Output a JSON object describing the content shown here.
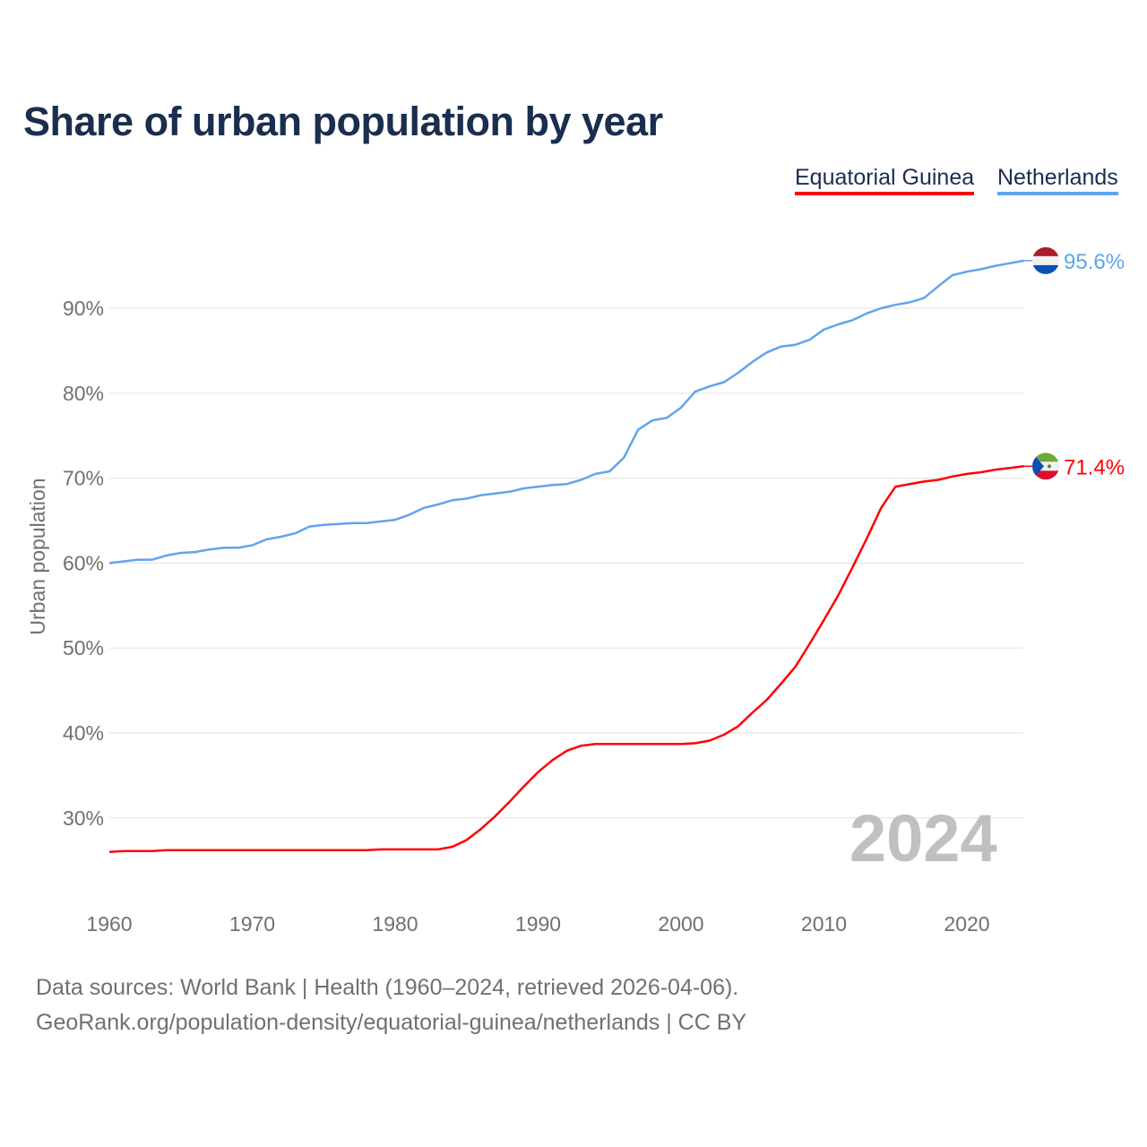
{
  "chart_data": {
    "type": "line",
    "title": "Share of urban population by year",
    "xlabel": "",
    "ylabel": "Urban population",
    "xlim": [
      1960,
      2024
    ],
    "ylim": [
      20,
      97
    ],
    "x_ticks": [
      1960,
      1970,
      1980,
      1990,
      2000,
      2010,
      2020
    ],
    "x_tick_labels": [
      "1960",
      "1970",
      "1980",
      "1990",
      "2000",
      "2010",
      "2020"
    ],
    "y_ticks": [
      30,
      40,
      50,
      60,
      70,
      80,
      90
    ],
    "y_tick_labels": [
      "30%",
      "40%",
      "50%",
      "60%",
      "70%",
      "80%",
      "90%"
    ],
    "grid": true,
    "legend_position": "top-right",
    "year_watermark": "2024",
    "x": [
      1960,
      1961,
      1962,
      1963,
      1964,
      1965,
      1966,
      1967,
      1968,
      1969,
      1970,
      1971,
      1972,
      1973,
      1974,
      1975,
      1976,
      1977,
      1978,
      1979,
      1980,
      1981,
      1982,
      1983,
      1984,
      1985,
      1986,
      1987,
      1988,
      1989,
      1990,
      1991,
      1992,
      1993,
      1994,
      1995,
      1996,
      1997,
      1998,
      1999,
      2000,
      2001,
      2002,
      2003,
      2004,
      2005,
      2006,
      2007,
      2008,
      2009,
      2010,
      2011,
      2012,
      2013,
      2014,
      2015,
      2016,
      2017,
      2018,
      2019,
      2020,
      2021,
      2022,
      2023,
      2024
    ],
    "series": [
      {
        "name": "Equatorial Guinea",
        "color": "#ff0000",
        "end_label": "71.4%",
        "flag": "equatorial-guinea-flag",
        "values": [
          26.0,
          26.1,
          26.1,
          26.1,
          26.2,
          26.2,
          26.2,
          26.2,
          26.2,
          26.2,
          26.2,
          26.2,
          26.2,
          26.2,
          26.2,
          26.2,
          26.2,
          26.2,
          26.2,
          26.3,
          26.3,
          26.3,
          26.3,
          26.3,
          26.6,
          27.4,
          28.7,
          30.2,
          31.9,
          33.7,
          35.4,
          36.8,
          37.9,
          38.5,
          38.7,
          38.7,
          38.7,
          38.7,
          38.7,
          38.7,
          38.7,
          38.8,
          39.1,
          39.8,
          40.8,
          42.4,
          43.9,
          45.8,
          47.8,
          50.5,
          53.3,
          56.2,
          59.5,
          62.9,
          66.5,
          69.0,
          69.3,
          69.6,
          69.8,
          70.2,
          70.5,
          70.7,
          71.0,
          71.2,
          71.4
        ]
      },
      {
        "name": "Netherlands",
        "color": "#60a5ec",
        "end_label": "95.6%",
        "flag": "netherlands-flag",
        "values": [
          60.0,
          60.2,
          60.4,
          60.4,
          60.9,
          61.2,
          61.3,
          61.6,
          61.8,
          61.8,
          62.1,
          62.8,
          63.1,
          63.5,
          64.3,
          64.5,
          64.6,
          64.7,
          64.7,
          64.9,
          65.1,
          65.7,
          66.5,
          66.9,
          67.4,
          67.6,
          68.0,
          68.2,
          68.4,
          68.8,
          69.0,
          69.2,
          69.3,
          69.8,
          70.5,
          70.8,
          72.4,
          75.7,
          76.8,
          77.1,
          78.3,
          80.2,
          80.8,
          81.3,
          82.4,
          83.7,
          84.8,
          85.5,
          85.7,
          86.3,
          87.5,
          88.1,
          88.6,
          89.4,
          90.0,
          90.4,
          90.7,
          91.2,
          92.6,
          93.9,
          94.3,
          94.6,
          95.0,
          95.3,
          95.6
        ]
      }
    ]
  },
  "footer": {
    "line1": "Data sources: World Bank | Health (1960–2024, retrieved 2026-04-06).",
    "line2": "GeoRank.org/population-density/equatorial-guinea/netherlands | CC BY"
  }
}
